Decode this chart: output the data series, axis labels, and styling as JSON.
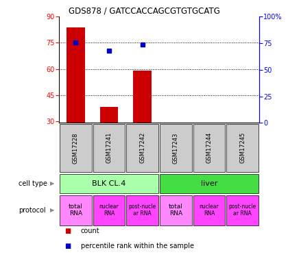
{
  "title": "GDS878 / GATCCACCAGCGTGTGCATG",
  "samples": [
    "GSM17228",
    "GSM17241",
    "GSM17242",
    "GSM17243",
    "GSM17244",
    "GSM17245"
  ],
  "bar_values": [
    84,
    38,
    59,
    null,
    null,
    null
  ],
  "percentile_values": [
    76,
    68,
    74,
    null,
    null,
    null
  ],
  "bar_color": "#cc0000",
  "percentile_color": "#0000cc",
  "ylim_left": [
    29,
    90
  ],
  "ylim_right": [
    0,
    100
  ],
  "yticks_left": [
    30,
    45,
    60,
    75,
    90
  ],
  "yticks_right": [
    0,
    25,
    50,
    75,
    100
  ],
  "yright_labels": [
    "0",
    "25",
    "50",
    "75",
    "100%"
  ],
  "hlines": [
    45,
    60,
    75
  ],
  "cell_types": [
    {
      "label": "BLK CL.4",
      "span": [
        0,
        3
      ],
      "color": "#aaffaa"
    },
    {
      "label": "liver",
      "span": [
        3,
        6
      ],
      "color": "#44dd44"
    }
  ],
  "protocols": [
    {
      "label": "total\nRNA",
      "color": "#ff88ff",
      "fontsize_big": true
    },
    {
      "label": "nuclear\nRNA",
      "color": "#ff44ff",
      "fontsize_big": false
    },
    {
      "label": "post-nucle\nar RNA",
      "color": "#ff44ff",
      "fontsize_big": false
    },
    {
      "label": "total\nRNA",
      "color": "#ff88ff",
      "fontsize_big": true
    },
    {
      "label": "nuclear\nRNA",
      "color": "#ff44ff",
      "fontsize_big": false
    },
    {
      "label": "post-nucle\nar RNA",
      "color": "#ff44ff",
      "fontsize_big": false
    }
  ],
  "legend_items": [
    {
      "label": "count",
      "color": "#cc0000"
    },
    {
      "label": "percentile rank within the sample",
      "color": "#0000cc"
    }
  ],
  "bar_width": 0.55,
  "baseline": 29,
  "sample_box_color": "#cccccc",
  "left_label_color": "#000000",
  "arrow_color": "#888888"
}
